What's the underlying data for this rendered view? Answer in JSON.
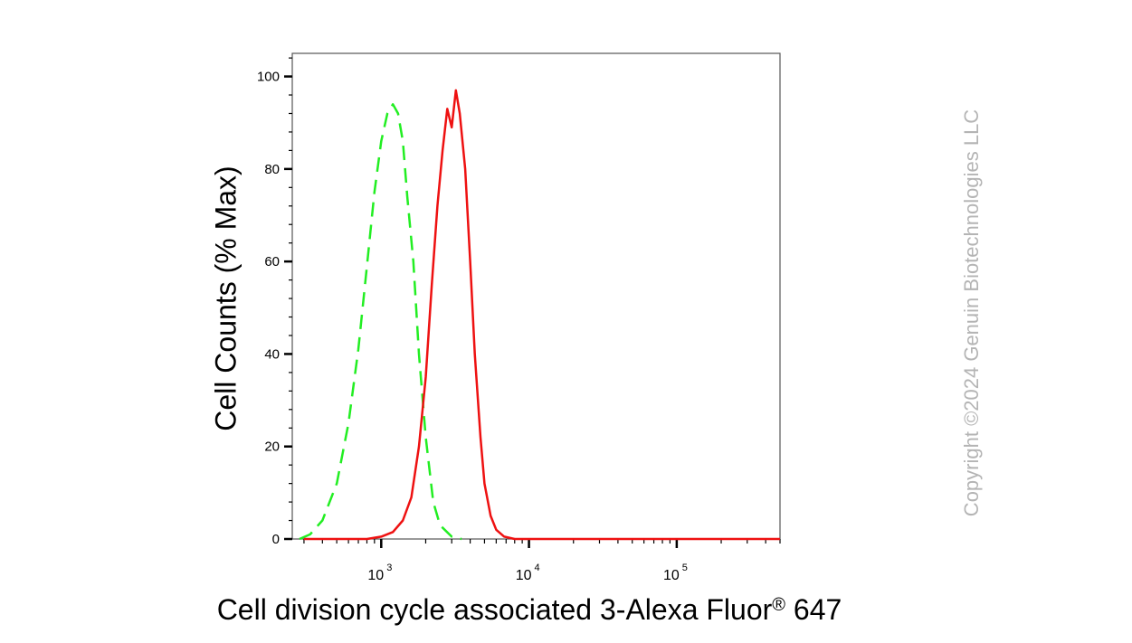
{
  "chart_data": {
    "type": "line",
    "xlabel": "Cell division cycle associated 3-Alexa Fluor",
    "xlabel_mark": "®",
    "xlabel_suffix": " 647",
    "ylabel": "Cell Counts (% Max)",
    "x_scale": "log",
    "xlim": [
      250,
      500000
    ],
    "ylim": [
      0,
      105
    ],
    "yticks": [
      0,
      20,
      40,
      60,
      80,
      100
    ],
    "xtick_base": "10",
    "xtick_exponents": [
      "3",
      "4",
      "5"
    ],
    "grid": false,
    "legend": "none",
    "series": [
      {
        "color": "#22ee22",
        "dashed": true,
        "points": [
          [
            280,
            0
          ],
          [
            330,
            1
          ],
          [
            400,
            4
          ],
          [
            500,
            12
          ],
          [
            600,
            25
          ],
          [
            700,
            41
          ],
          [
            800,
            59
          ],
          [
            900,
            75
          ],
          [
            1000,
            86
          ],
          [
            1100,
            92
          ],
          [
            1200,
            94
          ],
          [
            1300,
            92
          ],
          [
            1400,
            86
          ],
          [
            1500,
            74
          ],
          [
            1650,
            60
          ],
          [
            1800,
            40
          ],
          [
            2000,
            22
          ],
          [
            2250,
            8
          ],
          [
            2500,
            3
          ],
          [
            3000,
            0.5
          ],
          [
            3500,
            0
          ]
        ]
      },
      {
        "color": "#ee1111",
        "dashed": false,
        "points": [
          [
            300,
            0
          ],
          [
            800,
            0
          ],
          [
            1000,
            0.5
          ],
          [
            1200,
            1.5
          ],
          [
            1400,
            4
          ],
          [
            1600,
            9
          ],
          [
            1800,
            20
          ],
          [
            2000,
            35
          ],
          [
            2200,
            55
          ],
          [
            2400,
            72
          ],
          [
            2600,
            84
          ],
          [
            2800,
            93
          ],
          [
            3000,
            89
          ],
          [
            3200,
            97
          ],
          [
            3400,
            92
          ],
          [
            3700,
            80
          ],
          [
            4000,
            60
          ],
          [
            4300,
            40
          ],
          [
            4700,
            22
          ],
          [
            5000,
            12
          ],
          [
            5500,
            5
          ],
          [
            6000,
            2
          ],
          [
            6800,
            0.5
          ],
          [
            8000,
            0
          ],
          [
            500000,
            0
          ]
        ]
      }
    ]
  },
  "copyright": "Copyright ©2024 Genuin Biotechnologies LLC"
}
